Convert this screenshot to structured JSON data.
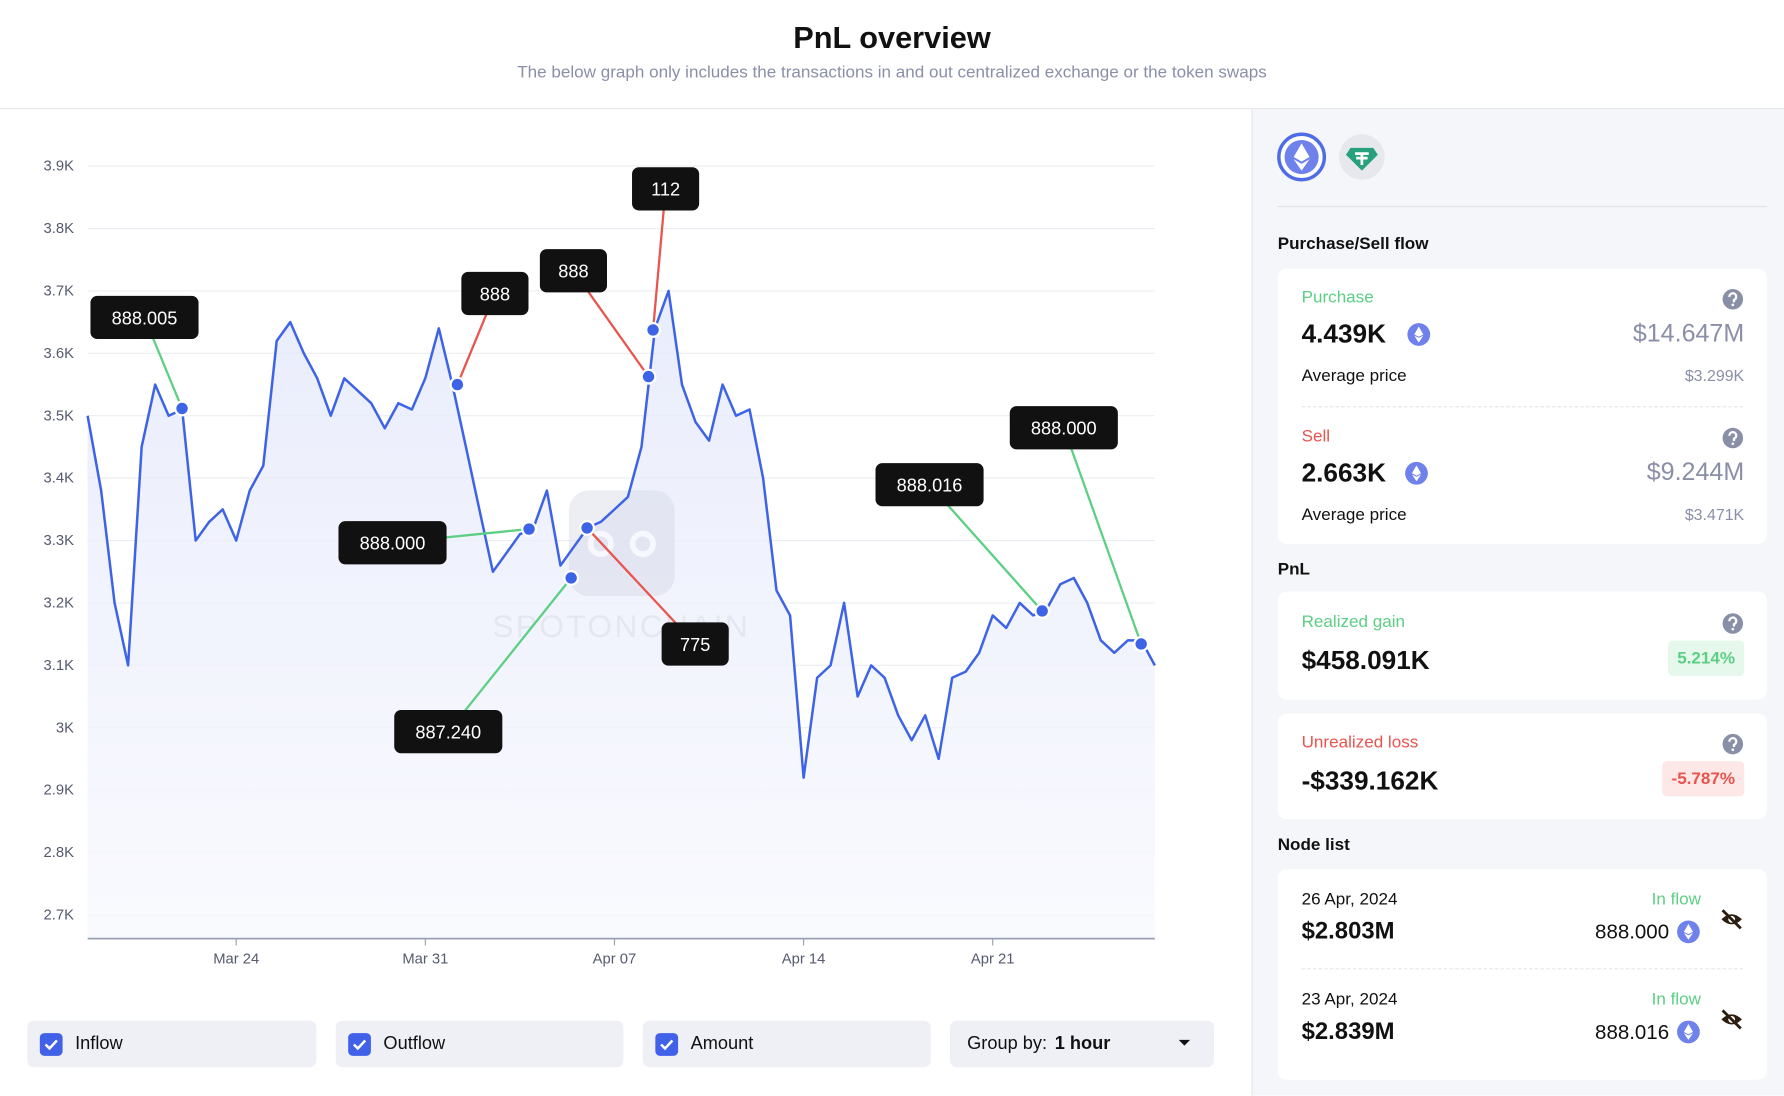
{
  "header": {
    "title": "PnL overview",
    "subtitle": "The below graph only includes the transactions in and out centralized exchange or the token swaps"
  },
  "chart_data": {
    "type": "line",
    "color": "#3d63e6",
    "categories": [
      null,
      null,
      null,
      null,
      null,
      null,
      null,
      null,
      null,
      null,
      null,
      "Mar 24",
      null,
      null,
      null,
      null,
      null,
      null,
      null,
      null,
      null,
      null,
      null,
      null,
      null,
      "Mar 31",
      null,
      null,
      null,
      null,
      null,
      null,
      null,
      null,
      null,
      null,
      null,
      null,
      null,
      "Apr 07",
      null,
      null,
      null,
      null,
      null,
      null,
      null,
      null,
      null,
      null,
      null,
      null,
      null,
      "Apr 14",
      null,
      null,
      null,
      null,
      null,
      null,
      null,
      null,
      null,
      null,
      null,
      null,
      null,
      "Apr 21",
      null,
      null,
      null,
      null,
      null,
      null,
      null,
      null,
      null,
      null,
      null,
      null
    ],
    "values": [
      3500,
      3380,
      3200,
      3100,
      3450,
      3550,
      3500,
      3510,
      3300,
      3330,
      3350,
      3300,
      3380,
      3420,
      3620,
      3650,
      3600,
      3560,
      3500,
      3560,
      3540,
      3520,
      3480,
      3520,
      3510,
      3560,
      3640,
      3550,
      3450,
      3350,
      3250,
      3280,
      3310,
      3320,
      3380,
      3260,
      3290,
      3320,
      3330,
      3350,
      3370,
      3450,
      3640,
      3700,
      3550,
      3490,
      3460,
      3550,
      3500,
      3510,
      3400,
      3220,
      3180,
      2920,
      3080,
      3100,
      3200,
      3050,
      3100,
      3080,
      3020,
      2980,
      3020,
      2950,
      3080,
      3090,
      3120,
      3180,
      3160,
      3200,
      3180,
      3190,
      3230,
      3240,
      3200,
      3140,
      3120,
      3140,
      3140,
      3100
    ],
    "ylim": [
      2662,
      3930
    ],
    "yticks": [
      {
        "value": 2700,
        "label": "2.7K"
      },
      {
        "value": 2800,
        "label": "2.8K"
      },
      {
        "value": 2900,
        "label": "2.9K"
      },
      {
        "value": 3000,
        "label": "3K"
      },
      {
        "value": 3100,
        "label": "3.1K"
      },
      {
        "value": 3200,
        "label": "3.2K"
      },
      {
        "value": 3300,
        "label": "3.3K"
      },
      {
        "value": 3400,
        "label": "3.4K"
      },
      {
        "value": 3500,
        "label": "3.5K"
      },
      {
        "value": 3600,
        "label": "3.6K"
      },
      {
        "value": 3700,
        "label": "3.7K"
      },
      {
        "value": 3800,
        "label": "3.8K"
      },
      {
        "value": 3900,
        "label": "3.9K"
      }
    ],
    "grid": true,
    "annotations": [
      {
        "label": "888.005",
        "color": "#5ccf84"
      },
      {
        "label": "888",
        "color": "#e8544e"
      },
      {
        "label": "888",
        "color": "#e8544e"
      },
      {
        "label": "112",
        "color": "#e8544e"
      },
      {
        "label": "888.000",
        "color": "#5ccf84"
      },
      {
        "label": "775",
        "color": "#e8544e"
      },
      {
        "label": "887.240",
        "color": "#5ccf84"
      },
      {
        "label": "888.016",
        "color": "#5ccf84"
      },
      {
        "label": "888.000",
        "color": "#5ccf84"
      }
    ],
    "watermark": "SPOTONCHAIN"
  },
  "controls": {
    "legend": [
      "Inflow",
      "Outflow",
      "Amount"
    ],
    "group_by_label": "Group by:",
    "group_by_value": "1 hour"
  },
  "panel": {
    "flow_title": "Purchase/Sell flow",
    "purchase": {
      "label": "Purchase",
      "amount": "4.439K",
      "usd": "$14.647M",
      "avg_label": "Average price",
      "avg": "$3.299K"
    },
    "sell": {
      "label": "Sell",
      "amount": "2.663K",
      "usd": "$9.244M",
      "avg_label": "Average price",
      "avg": "$3.471K"
    },
    "pnl_title": "PnL",
    "realized": {
      "label": "Realized gain",
      "value": "$458.091K",
      "pct": "5.214%"
    },
    "unrealized": {
      "label": "Unrealized loss",
      "value": "-$339.162K",
      "pct": "-5.787%"
    },
    "node_title": "Node list",
    "nodes": [
      {
        "date": "26 Apr, 2024",
        "value": "$2.803M",
        "flow": "In flow",
        "amount": "888.000"
      },
      {
        "date": "23 Apr, 2024",
        "value": "$2.839M",
        "flow": "In flow",
        "amount": "888.016"
      }
    ]
  }
}
